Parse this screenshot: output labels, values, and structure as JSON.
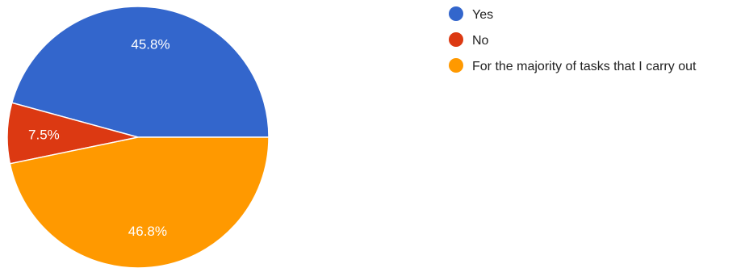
{
  "chart_data": {
    "type": "pie",
    "legend_position": "right",
    "slices": [
      {
        "label": "Yes",
        "value": 45.8,
        "value_label": "45.8%",
        "color": "#3366cc"
      },
      {
        "label": "No",
        "value": 7.5,
        "value_label": "7.5%",
        "color": "#dc3912"
      },
      {
        "label": "For the majority of tasks that I carry out",
        "value": 46.8,
        "value_label": "46.8%",
        "color": "#ff9900"
      }
    ]
  }
}
